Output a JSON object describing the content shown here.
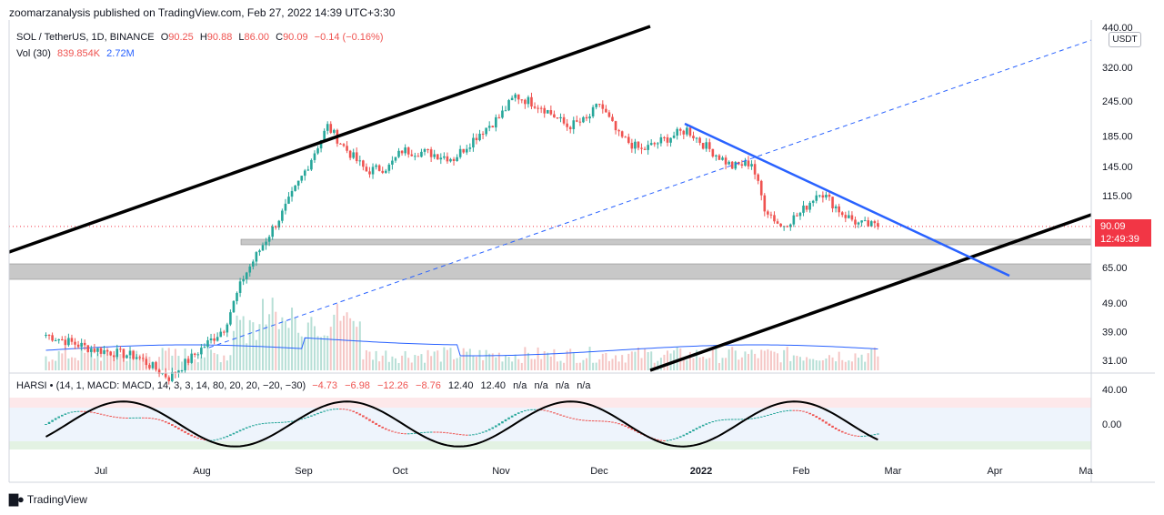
{
  "publisher": "zoomarzanalysis published on TradingView.com, Feb 27, 2022 14:39 UTC+3:30",
  "branding": {
    "logo_text": "TradingView",
    "logo_icon": "tradingview-logo-icon"
  },
  "header": {
    "symbol": "SOL / TetherUS, 1D, BINANCE",
    "ohlc": [
      {
        "key": "O",
        "value": "90.25"
      },
      {
        "key": "H",
        "value": "90.88"
      },
      {
        "key": "L",
        "value": "86.00"
      },
      {
        "key": "C",
        "value": "90.09"
      }
    ],
    "change": "−0.14 (−0.16%)",
    "volume_label": "Vol (30)",
    "volume_value": "839.854K",
    "volume_ma": "2.72M"
  },
  "indicator": {
    "label": "HARSI • (14, 1, MACD: MACD, 14, 3, 3, 14, 80, 20, 20, −20, −30)",
    "values": [
      "−4.73",
      "−6.98",
      "−12.26",
      "−8.76",
      "12.40",
      "12.40",
      "n/a",
      "n/a",
      "n/a",
      "n/a"
    ],
    "axis_ticks": [
      "40.00",
      "0.00"
    ]
  },
  "currency_button": "USDT",
  "last_price_badge": {
    "price": "90.09",
    "countdown": "12:49:39"
  },
  "chart_data": {
    "type": "candlestick",
    "scale": "log",
    "grid": false,
    "x_ticks": [
      "Jul",
      "Aug",
      "Sep",
      "Oct",
      "Nov",
      "Dec",
      "2022",
      "Feb",
      "Mar",
      "Apr",
      "Ma"
    ],
    "y_ticks": [
      "440.00",
      "320.00",
      "245.00",
      "185.00",
      "145.00",
      "115.00",
      "65.00",
      "49.00",
      "39.00",
      "31.00"
    ],
    "y_tick_values": [
      440,
      320,
      245,
      185,
      145,
      115,
      65,
      49,
      39,
      31
    ],
    "last_price": 90.09,
    "colors": {
      "up": "#26a69a",
      "down": "#ef5350",
      "trendline": "#2962ff",
      "channel": "#000000",
      "zone": "#c8c8c8",
      "oversold": "#e3f2e3",
      "overbought": "#fde8ea",
      "mid": "#eef4fc"
    },
    "path_points": [
      [
        "2021-06-14",
        38
      ],
      [
        "2021-06-28",
        34
      ],
      [
        "2021-07-12",
        32
      ],
      [
        "2021-07-22",
        27
      ],
      [
        "2021-08-01",
        34
      ],
      [
        "2021-08-08",
        40
      ],
      [
        "2021-08-14",
        60
      ],
      [
        "2021-08-20",
        78
      ],
      [
        "2021-08-26",
        100
      ],
      [
        "2021-09-02",
        140
      ],
      [
        "2021-09-09",
        200
      ],
      [
        "2021-09-14",
        170
      ],
      [
        "2021-09-21",
        140
      ],
      [
        "2021-09-28",
        145
      ],
      [
        "2021-10-02",
        165
      ],
      [
        "2021-10-10",
        162
      ],
      [
        "2021-10-18",
        155
      ],
      [
        "2021-10-26",
        190
      ],
      [
        "2021-11-01",
        215
      ],
      [
        "2021-11-06",
        255
      ],
      [
        "2021-11-14",
        235
      ],
      [
        "2021-11-22",
        200
      ],
      [
        "2021-11-28",
        210
      ],
      [
        "2021-12-02",
        240
      ],
      [
        "2021-12-08",
        185
      ],
      [
        "2021-12-15",
        165
      ],
      [
        "2021-12-22",
        180
      ],
      [
        "2021-12-29",
        195
      ],
      [
        "2022-01-04",
        170
      ],
      [
        "2022-01-12",
        145
      ],
      [
        "2022-01-18",
        150
      ],
      [
        "2022-01-22",
        105
      ],
      [
        "2022-01-27",
        90
      ],
      [
        "2022-02-02",
        100
      ],
      [
        "2022-02-08",
        120
      ],
      [
        "2022-02-15",
        100
      ],
      [
        "2022-02-20",
        92
      ],
      [
        "2022-02-26",
        90
      ]
    ]
  }
}
